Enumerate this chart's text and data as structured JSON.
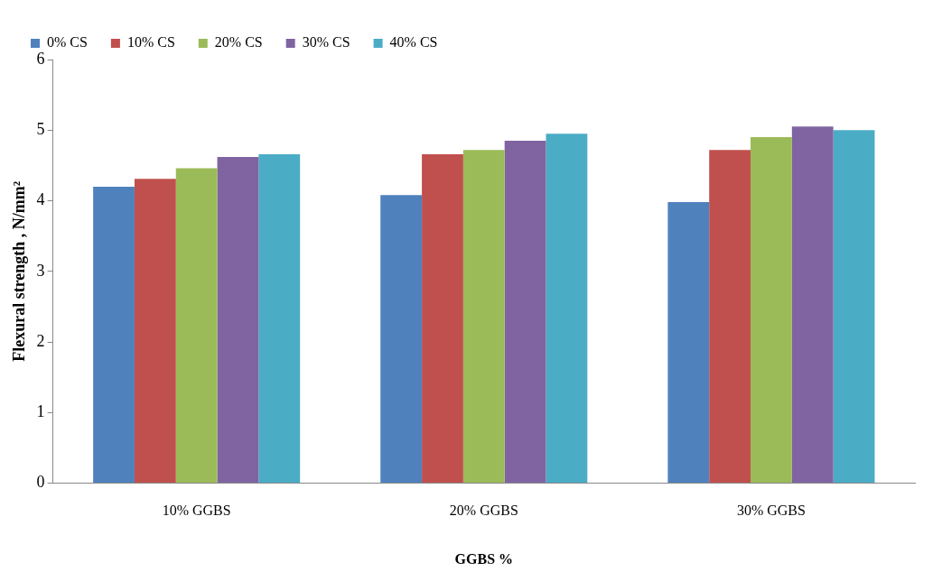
{
  "chart_data": {
    "type": "bar",
    "xlabel": "GGBS %",
    "ylabel": "Flexural strength , N/mm²",
    "categories": [
      "10% GGBS",
      "20% GGBS",
      "30% GGBS"
    ],
    "series": [
      {
        "name": "0% CS",
        "color": "#4f81bd",
        "values": [
          4.2,
          4.08,
          3.98
        ]
      },
      {
        "name": "10% CS",
        "color": "#c0504d",
        "values": [
          4.31,
          4.66,
          4.72
        ]
      },
      {
        "name": "20% CS",
        "color": "#9bbb59",
        "values": [
          4.46,
          4.72,
          4.9
        ]
      },
      {
        "name": "30% CS",
        "color": "#8064a2",
        "values": [
          4.62,
          4.85,
          5.05
        ]
      },
      {
        "name": "40% CS",
        "color": "#4bacc6",
        "values": [
          4.66,
          4.95,
          5.0
        ]
      }
    ],
    "ylim": [
      0,
      6
    ],
    "yticks": [
      0,
      1,
      2,
      3,
      4,
      5,
      6
    ],
    "grid": false,
    "legend": "top"
  }
}
